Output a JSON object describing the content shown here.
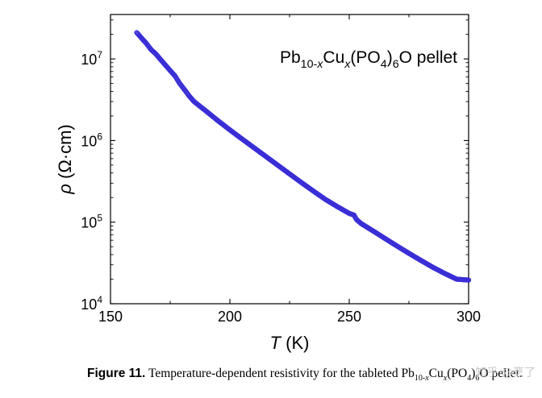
{
  "chart_data": {
    "type": "scatter",
    "title": {
      "formula_parts": [
        {
          "t": "Pb",
          "s": "n"
        },
        {
          "t": "10-",
          "s": "sub"
        },
        {
          "t": "x",
          "s": "sub-i"
        },
        {
          "t": "Cu",
          "s": "n"
        },
        {
          "t": "x",
          "s": "sub-i"
        },
        {
          "t": "(PO",
          "s": "n"
        },
        {
          "t": "4",
          "s": "sub"
        },
        {
          "t": ")",
          "s": "n"
        },
        {
          "t": "6",
          "s": "sub"
        },
        {
          "t": "O pellet",
          "s": "n"
        }
      ]
    },
    "xlabel": {
      "symbol": "T",
      "unit": " (K)"
    },
    "ylabel": {
      "symbol": "ρ",
      "unit": " (Ω·cm)"
    },
    "x_ticks": [
      "150",
      "200",
      "250",
      "300"
    ],
    "y_ticks": [
      {
        "base": "10",
        "exp": "4"
      },
      {
        "base": "10",
        "exp": "5"
      },
      {
        "base": "10",
        "exp": "6"
      },
      {
        "base": "10",
        "exp": "7"
      }
    ],
    "xlim": [
      150,
      300
    ],
    "ylim": [
      10000,
      35000000
    ],
    "y_scale": "log",
    "marker_color": "#3a2fd6",
    "series": [
      {
        "points": [
          [
            161,
            21000000
          ],
          [
            163,
            18000000
          ],
          [
            165,
            15500000
          ],
          [
            167,
            13000000
          ],
          [
            169,
            11500000
          ],
          [
            171,
            9800000
          ],
          [
            173,
            8400000
          ],
          [
            175,
            7200000
          ],
          [
            177,
            6200000
          ],
          [
            179,
            5000000
          ],
          [
            181,
            4200000
          ],
          [
            183,
            3500000
          ],
          [
            185,
            3000000
          ],
          [
            190,
            2300000
          ],
          [
            195,
            1750000
          ],
          [
            200,
            1350000
          ],
          [
            205,
            1050000
          ],
          [
            210,
            820000
          ],
          [
            215,
            640000
          ],
          [
            220,
            500000
          ],
          [
            225,
            390000
          ],
          [
            230,
            305000
          ],
          [
            235,
            240000
          ],
          [
            240,
            190000
          ],
          [
            245,
            155000
          ],
          [
            250,
            128000
          ],
          [
            252,
            122000
          ],
          [
            253,
            108000
          ],
          [
            255,
            96000
          ],
          [
            260,
            78000
          ],
          [
            265,
            63000
          ],
          [
            270,
            51000
          ],
          [
            275,
            41500
          ],
          [
            280,
            34000
          ],
          [
            285,
            28000
          ],
          [
            290,
            23500
          ],
          [
            295,
            20000
          ],
          [
            300,
            19500
          ]
        ]
      }
    ]
  },
  "caption": {
    "lead": "Figure 11.",
    "text_parts": [
      {
        "t": " Temperature-dependent resistivity for the tableted Pb",
        "s": "n"
      },
      {
        "t": "10-",
        "s": "sub"
      },
      {
        "t": "x",
        "s": "sub-i"
      },
      {
        "t": "Cu",
        "s": "n"
      },
      {
        "t": "x",
        "s": "sub-i"
      },
      {
        "t": "(PO",
        "s": "n"
      },
      {
        "t": "4",
        "s": "sub"
      },
      {
        "t": ")",
        "s": "n"
      },
      {
        "t": "6",
        "s": "sub"
      },
      {
        "t": "O pellet.",
        "s": "n"
      }
    ]
  },
  "watermark": "知乎 @烹了"
}
